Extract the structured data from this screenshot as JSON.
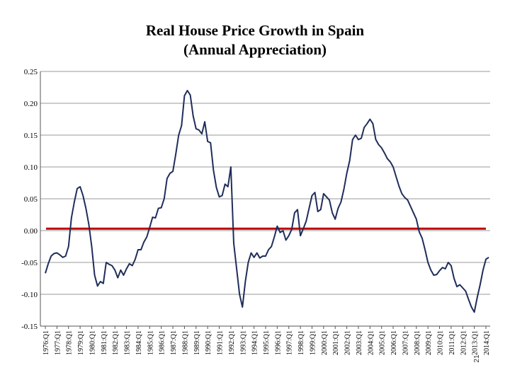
{
  "chart_data": {
    "type": "line",
    "title_lines": [
      "Real House Price Growth in Spain",
      "(Annual Appreciation)"
    ],
    "xlabel": "",
    "ylabel": "",
    "ylim": [
      -0.15,
      0.25
    ],
    "y_ticks": [
      "0.25",
      "0.20",
      "0.15",
      "0.10",
      "0.05",
      "0.00",
      "-0.05",
      "-0.10",
      "-0.15"
    ],
    "y_tick_values": [
      0.25,
      0.2,
      0.15,
      0.1,
      0.05,
      0.0,
      -0.05,
      -0.1,
      -0.15
    ],
    "grid": "horizontal",
    "legend": "none",
    "x_ticks": [
      "1976:Q1",
      "1977:Q1",
      "1978:Q1",
      "1979:Q1",
      "1980:Q1",
      "1981:Q1",
      "1982:Q1",
      "1983:Q1",
      "1984:Q1",
      "1985:Q1",
      "1986:Q1",
      "1987:Q1",
      "1988:Q1",
      "1989:Q1",
      "1990:Q1",
      "1991:Q1",
      "1992:Q1",
      "1993:Q1",
      "1994:Q1",
      "1995:Q1",
      "1996:Q1",
      "1997:Q1",
      "1998:Q1",
      "1999:Q1",
      "2000:Q1",
      "2001:Q1",
      "2002:Q1",
      "2003:Q1",
      "2004:Q1",
      "2005:Q1",
      "2006:Q1",
      "2007:Q1",
      "2008:Q1",
      "2009:Q1",
      "2010:Q1",
      "2011:Q1",
      "2012:Q1",
      "2013:Q1",
      "2014:Q1"
    ],
    "x_start": "1976:Q1",
    "x_end": "2014:Q1",
    "series": [
      {
        "name": "",
        "color": "#1f2d5a",
        "points": [
          [
            "1976:Q1",
            -0.067
          ],
          [
            "1976:Q2",
            -0.052
          ],
          [
            "1976:Q3",
            -0.04
          ],
          [
            "1976:Q4",
            -0.036
          ],
          [
            "1977:Q1",
            -0.035
          ],
          [
            "1977:Q2",
            -0.038
          ],
          [
            "1977:Q3",
            -0.042
          ],
          [
            "1977:Q4",
            -0.04
          ],
          [
            "1978:Q1",
            -0.025
          ],
          [
            "1978:Q2",
            0.02
          ],
          [
            "1978:Q3",
            0.045
          ],
          [
            "1978:Q4",
            0.066
          ],
          [
            "1979:Q1",
            0.069
          ],
          [
            "1979:Q2",
            0.055
          ],
          [
            "1979:Q3",
            0.035
          ],
          [
            "1979:Q4",
            0.01
          ],
          [
            "1980:Q1",
            -0.025
          ],
          [
            "1980:Q2",
            -0.07
          ],
          [
            "1980:Q3",
            -0.087
          ],
          [
            "1980:Q4",
            -0.08
          ],
          [
            "1981:Q1",
            -0.083
          ],
          [
            "1981:Q2",
            -0.05
          ],
          [
            "1981:Q3",
            -0.053
          ],
          [
            "1981:Q4",
            -0.055
          ],
          [
            "1982:Q1",
            -0.062
          ],
          [
            "1982:Q2",
            -0.074
          ],
          [
            "1982:Q3",
            -0.062
          ],
          [
            "1982:Q4",
            -0.07
          ],
          [
            "1983:Q1",
            -0.06
          ],
          [
            "1983:Q2",
            -0.052
          ],
          [
            "1983:Q3",
            -0.055
          ],
          [
            "1983:Q4",
            -0.045
          ],
          [
            "1984:Q1",
            -0.03
          ],
          [
            "1984:Q2",
            -0.03
          ],
          [
            "1984:Q3",
            -0.018
          ],
          [
            "1984:Q4",
            -0.01
          ],
          [
            "1985:Q1",
            0.005
          ],
          [
            "1985:Q2",
            0.021
          ],
          [
            "1985:Q3",
            0.02
          ],
          [
            "1985:Q4",
            0.035
          ],
          [
            "1986:Q1",
            0.036
          ],
          [
            "1986:Q2",
            0.05
          ],
          [
            "1986:Q3",
            0.082
          ],
          [
            "1986:Q4",
            0.09
          ],
          [
            "1987:Q1",
            0.093
          ],
          [
            "1987:Q2",
            0.12
          ],
          [
            "1987:Q3",
            0.15
          ],
          [
            "1987:Q4",
            0.165
          ],
          [
            "1988:Q1",
            0.212
          ],
          [
            "1988:Q2",
            0.22
          ],
          [
            "1988:Q3",
            0.213
          ],
          [
            "1988:Q4",
            0.18
          ],
          [
            "1989:Q1",
            0.16
          ],
          [
            "1989:Q2",
            0.158
          ],
          [
            "1989:Q3",
            0.152
          ],
          [
            "1989:Q4",
            0.171
          ],
          [
            "1990:Q1",
            0.14
          ],
          [
            "1990:Q2",
            0.138
          ],
          [
            "1990:Q3",
            0.095
          ],
          [
            "1990:Q4",
            0.068
          ],
          [
            "1991:Q1",
            0.053
          ],
          [
            "1991:Q2",
            0.055
          ],
          [
            "1991:Q3",
            0.073
          ],
          [
            "1991:Q4",
            0.069
          ],
          [
            "1992:Q1",
            0.1
          ],
          [
            "1992:Q2",
            -0.02
          ],
          [
            "1992:Q3",
            -0.06
          ],
          [
            "1992:Q4",
            -0.1
          ],
          [
            "1993:Q1",
            -0.12
          ],
          [
            "1993:Q2",
            -0.08
          ],
          [
            "1993:Q3",
            -0.05
          ],
          [
            "1993:Q4",
            -0.035
          ],
          [
            "1994:Q1",
            -0.042
          ],
          [
            "1994:Q2",
            -0.035
          ],
          [
            "1994:Q3",
            -0.043
          ],
          [
            "1994:Q4",
            -0.04
          ],
          [
            "1995:Q1",
            -0.04
          ],
          [
            "1995:Q2",
            -0.03
          ],
          [
            "1995:Q3",
            -0.025
          ],
          [
            "1995:Q4",
            -0.01
          ],
          [
            "1996:Q1",
            0.007
          ],
          [
            "1996:Q2",
            -0.003
          ],
          [
            "1996:Q3",
            0.0
          ],
          [
            "1996:Q4",
            -0.015
          ],
          [
            "1997:Q1",
            -0.008
          ],
          [
            "1997:Q2",
            0.002
          ],
          [
            "1997:Q3",
            0.028
          ],
          [
            "1997:Q4",
            0.033
          ],
          [
            "1998:Q1",
            -0.008
          ],
          [
            "1998:Q2",
            0.003
          ],
          [
            "1998:Q3",
            0.015
          ],
          [
            "1998:Q4",
            0.035
          ],
          [
            "1999:Q1",
            0.055
          ],
          [
            "1999:Q2",
            0.06
          ],
          [
            "1999:Q3",
            0.03
          ],
          [
            "1999:Q4",
            0.033
          ],
          [
            "2000:Q1",
            0.058
          ],
          [
            "2000:Q2",
            0.053
          ],
          [
            "2000:Q3",
            0.048
          ],
          [
            "2000:Q4",
            0.028
          ],
          [
            "2001:Q1",
            0.018
          ],
          [
            "2001:Q2",
            0.035
          ],
          [
            "2001:Q3",
            0.045
          ],
          [
            "2001:Q4",
            0.065
          ],
          [
            "2002:Q1",
            0.09
          ],
          [
            "2002:Q2",
            0.11
          ],
          [
            "2002:Q3",
            0.143
          ],
          [
            "2002:Q4",
            0.15
          ],
          [
            "2003:Q1",
            0.143
          ],
          [
            "2003:Q2",
            0.145
          ],
          [
            "2003:Q3",
            0.162
          ],
          [
            "2003:Q4",
            0.168
          ],
          [
            "2004:Q1",
            0.175
          ],
          [
            "2004:Q2",
            0.168
          ],
          [
            "2004:Q3",
            0.143
          ],
          [
            "2004:Q4",
            0.135
          ],
          [
            "2005:Q1",
            0.13
          ],
          [
            "2005:Q2",
            0.122
          ],
          [
            "2005:Q3",
            0.113
          ],
          [
            "2005:Q4",
            0.108
          ],
          [
            "2006:Q1",
            0.1
          ],
          [
            "2006:Q2",
            0.085
          ],
          [
            "2006:Q3",
            0.07
          ],
          [
            "2006:Q4",
            0.058
          ],
          [
            "2007:Q1",
            0.052
          ],
          [
            "2007:Q2",
            0.048
          ],
          [
            "2007:Q3",
            0.038
          ],
          [
            "2007:Q4",
            0.028
          ],
          [
            "2008:Q1",
            0.018
          ],
          [
            "2008:Q2",
            -0.002
          ],
          [
            "2008:Q3",
            -0.012
          ],
          [
            "2008:Q4",
            -0.03
          ],
          [
            "2009:Q1",
            -0.05
          ],
          [
            "2009:Q2",
            -0.062
          ],
          [
            "2009:Q3",
            -0.07
          ],
          [
            "2009:Q4",
            -0.069
          ],
          [
            "2010:Q1",
            -0.063
          ],
          [
            "2010:Q2",
            -0.058
          ],
          [
            "2010:Q3",
            -0.06
          ],
          [
            "2010:Q4",
            -0.05
          ],
          [
            "2011:Q1",
            -0.055
          ],
          [
            "2011:Q2",
            -0.075
          ],
          [
            "2011:Q3",
            -0.088
          ],
          [
            "2011:Q4",
            -0.085
          ],
          [
            "2012:Q1",
            -0.09
          ],
          [
            "2012:Q2",
            -0.095
          ],
          [
            "2012:Q3",
            -0.108
          ],
          [
            "2012:Q4",
            -0.12
          ],
          [
            "2013:Q1",
            -0.128
          ],
          [
            "2013:Q2",
            -0.105
          ],
          [
            "2013:Q3",
            -0.085
          ],
          [
            "2013:Q4",
            -0.062
          ],
          [
            "2014:Q1",
            -0.045
          ],
          [
            "2014:Q2",
            -0.042
          ]
        ]
      }
    ],
    "reference_line": {
      "y": 0.003,
      "color": "#c00000"
    },
    "page_number": "21"
  }
}
